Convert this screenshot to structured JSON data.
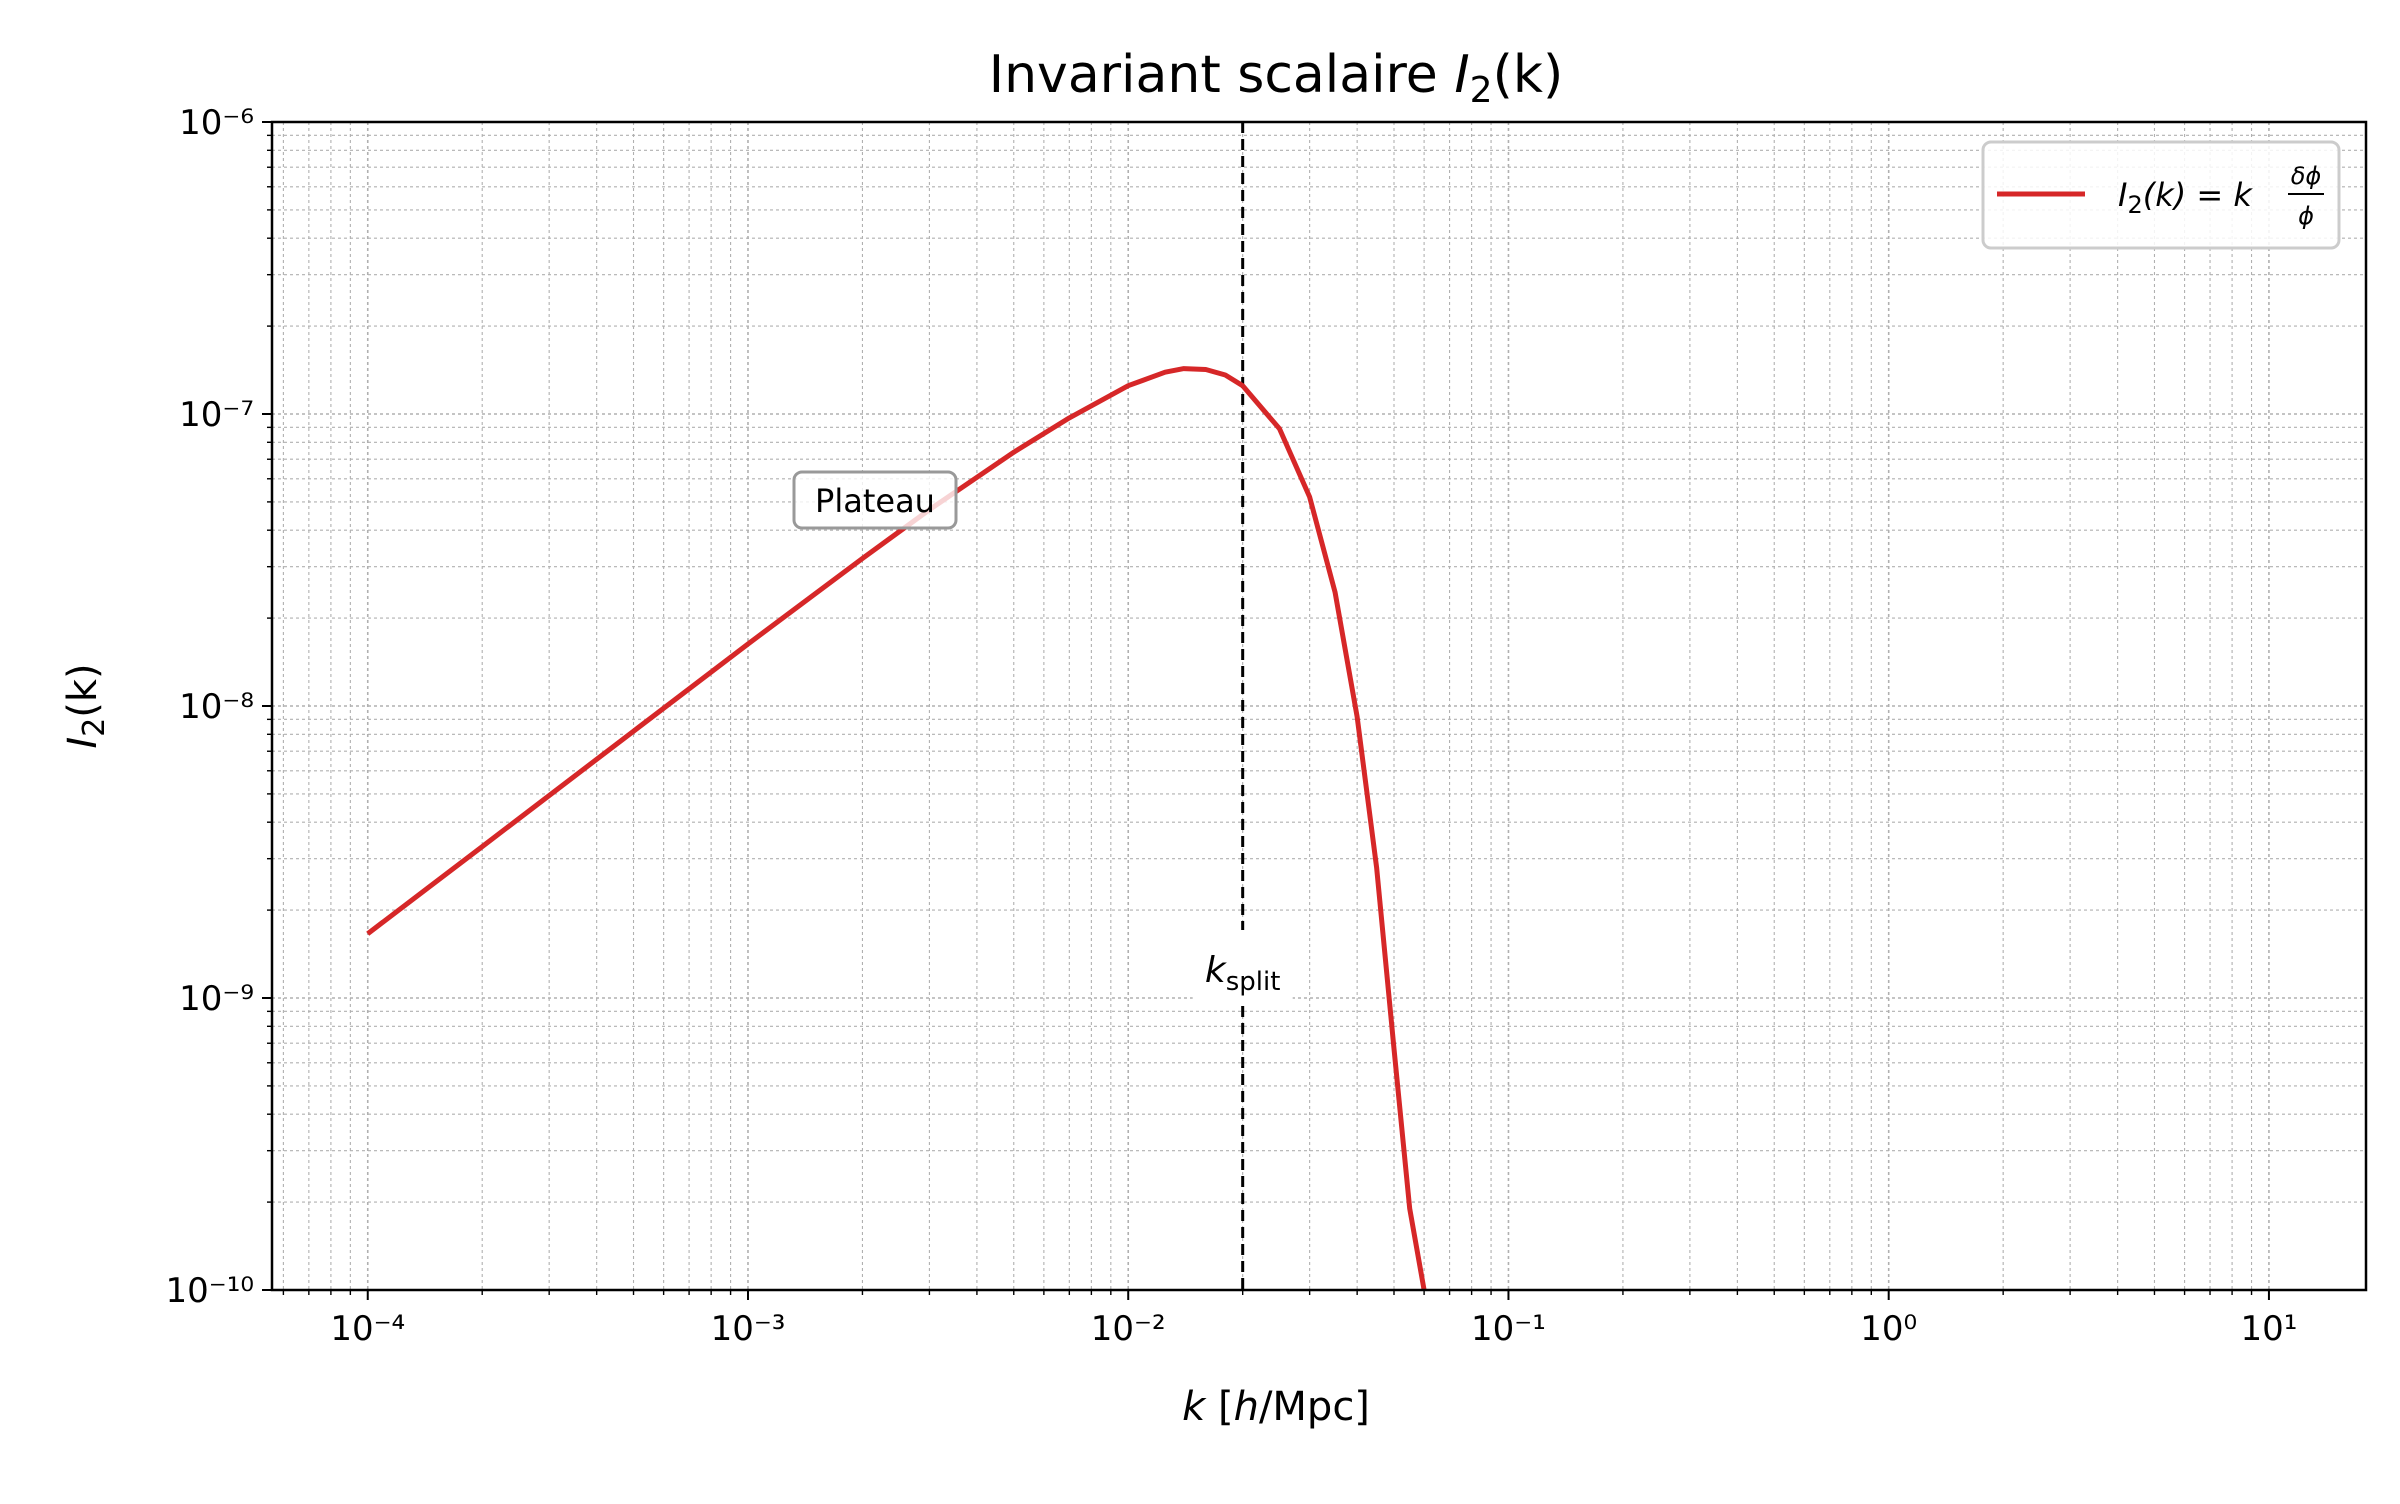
{
  "chart_data": {
    "type": "line",
    "title": "Invariant scalaire I₂(k)",
    "xlabel": "k [h/Mpc]",
    "ylabel": "I₂(k)",
    "xscale": "log",
    "yscale": "log",
    "xlim": [
      5.6e-05,
      18
    ],
    "ylim": [
      1e-10,
      1e-06
    ],
    "grid": true,
    "legend_position": "top-right",
    "x_tick_labels": [
      "10⁻⁴",
      "10⁻³",
      "10⁻²",
      "10⁻¹",
      "10⁰",
      "10¹"
    ],
    "y_tick_labels": [
      "10⁻¹⁰",
      "10⁻⁹",
      "10⁻⁸",
      "10⁻⁷",
      "10⁻⁶"
    ],
    "series": [
      {
        "name": "I₂(k) = k δϕ/ϕ",
        "color": "#d62728",
        "x": [
          0.0001,
          0.0002,
          0.0005,
          0.001,
          0.002,
          0.003,
          0.005,
          0.007,
          0.01,
          0.0125,
          0.014,
          0.016,
          0.018,
          0.02,
          0.025,
          0.03,
          0.035,
          0.04,
          0.045,
          0.05,
          0.055,
          0.06
        ],
        "y": [
          1.66e-09,
          3.3e-09,
          8.2e-09,
          1.63e-08,
          3.2e-08,
          4.7e-08,
          7.4e-08,
          9.7e-08,
          1.25e-07,
          1.39e-07,
          1.43e-07,
          1.42e-07,
          1.36e-07,
          1.25e-07,
          8.9e-08,
          5.2e-08,
          2.45e-08,
          9.2e-09,
          2.8e-09,
          6.7e-10,
          1.9e-10,
          1e-10
        ]
      }
    ],
    "vline": {
      "x": 0.02,
      "label": "k_split"
    },
    "annotations": [
      {
        "text": "Plateau",
        "x": 0.0025,
        "y": 5.2e-08
      }
    ]
  },
  "labels": {
    "title_main": "Invariant scalaire ",
    "title_var": "I",
    "title_sub": "2",
    "title_tail": "(k)",
    "x_label_k": "k",
    "x_label_rest": " [",
    "x_label_h": "h",
    "x_label_unit": "/Mpc]",
    "y_label_var": "I",
    "y_label_sub": "2",
    "y_label_tail": "(k)",
    "legend_var": "I",
    "legend_sub": "2",
    "legend_mid": "(k) = k",
    "legend_num": "δϕ",
    "legend_den": "ϕ",
    "ksplit_k": "k",
    "ksplit_sub": "split",
    "plateau": "Plateau"
  }
}
